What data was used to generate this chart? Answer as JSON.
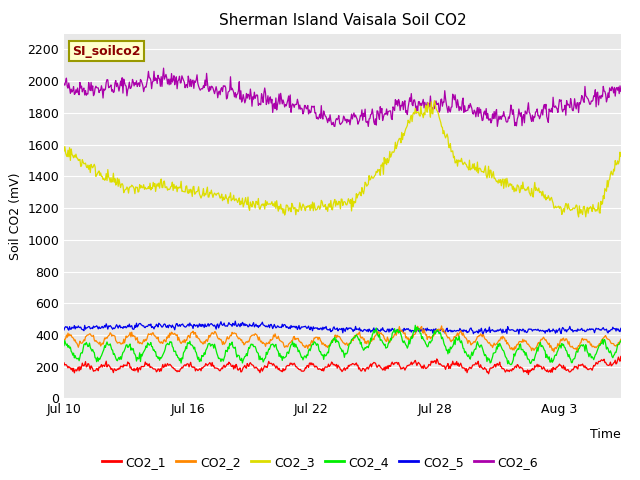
{
  "title": "Sherman Island Vaisala Soil CO2",
  "ylabel": "Soil CO2 (mV)",
  "xlabel": "Time",
  "legend_label": "SI_soilco2",
  "ylim": [
    0,
    2300
  ],
  "yticks": [
    0,
    200,
    400,
    600,
    800,
    1000,
    1200,
    1400,
    1600,
    1800,
    2000,
    2200
  ],
  "xtick_labels": [
    "Jul 10",
    "Jul 16",
    "Jul 22",
    "Jul 28",
    "Aug 3"
  ],
  "xtick_positions": [
    0,
    6,
    12,
    18,
    24
  ],
  "xlim": [
    0,
    27
  ],
  "series_colors": {
    "CO2_1": "#ff0000",
    "CO2_2": "#ff8800",
    "CO2_3": "#dddd00",
    "CO2_4": "#00ee00",
    "CO2_5": "#0000ee",
    "CO2_6": "#aa00aa"
  },
  "fig_bg": "#ffffff",
  "plot_bg": "#e8e8e8",
  "grid_color": "#ffffff",
  "title_fontsize": 11,
  "axis_fontsize": 9,
  "tick_fontsize": 9,
  "legend_fontsize": 9,
  "seed": 42,
  "n_points": 700
}
